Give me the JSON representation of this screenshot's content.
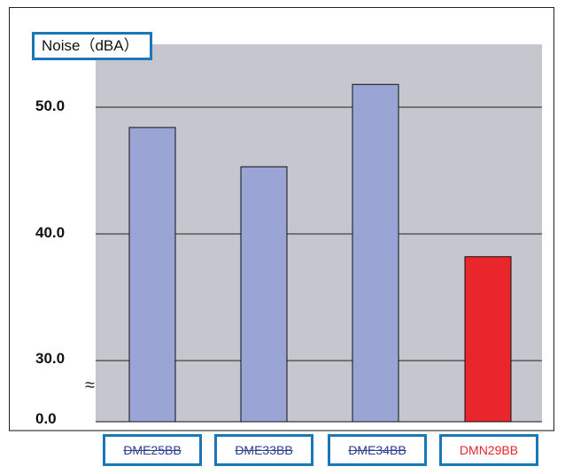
{
  "chart_data": {
    "type": "bar",
    "ylabel": "Noise（dBA）",
    "categories": [
      "DME25BB",
      "DME33BB",
      "DME34BB",
      "DMN29BB"
    ],
    "values": [
      48.4,
      45.3,
      51.8,
      38.2
    ],
    "yticks": [
      "50.0",
      "40.0",
      "30.0",
      "0.0"
    ],
    "ylim": [
      27.5,
      55.5
    ],
    "axis_break": true,
    "grid": true,
    "colors": {
      "bar": "#9aa5d5",
      "highlight": "#e8262b",
      "plot_bg": "#c5c6ce",
      "frame": "#1a78b8"
    },
    "highlight_index": 3
  }
}
